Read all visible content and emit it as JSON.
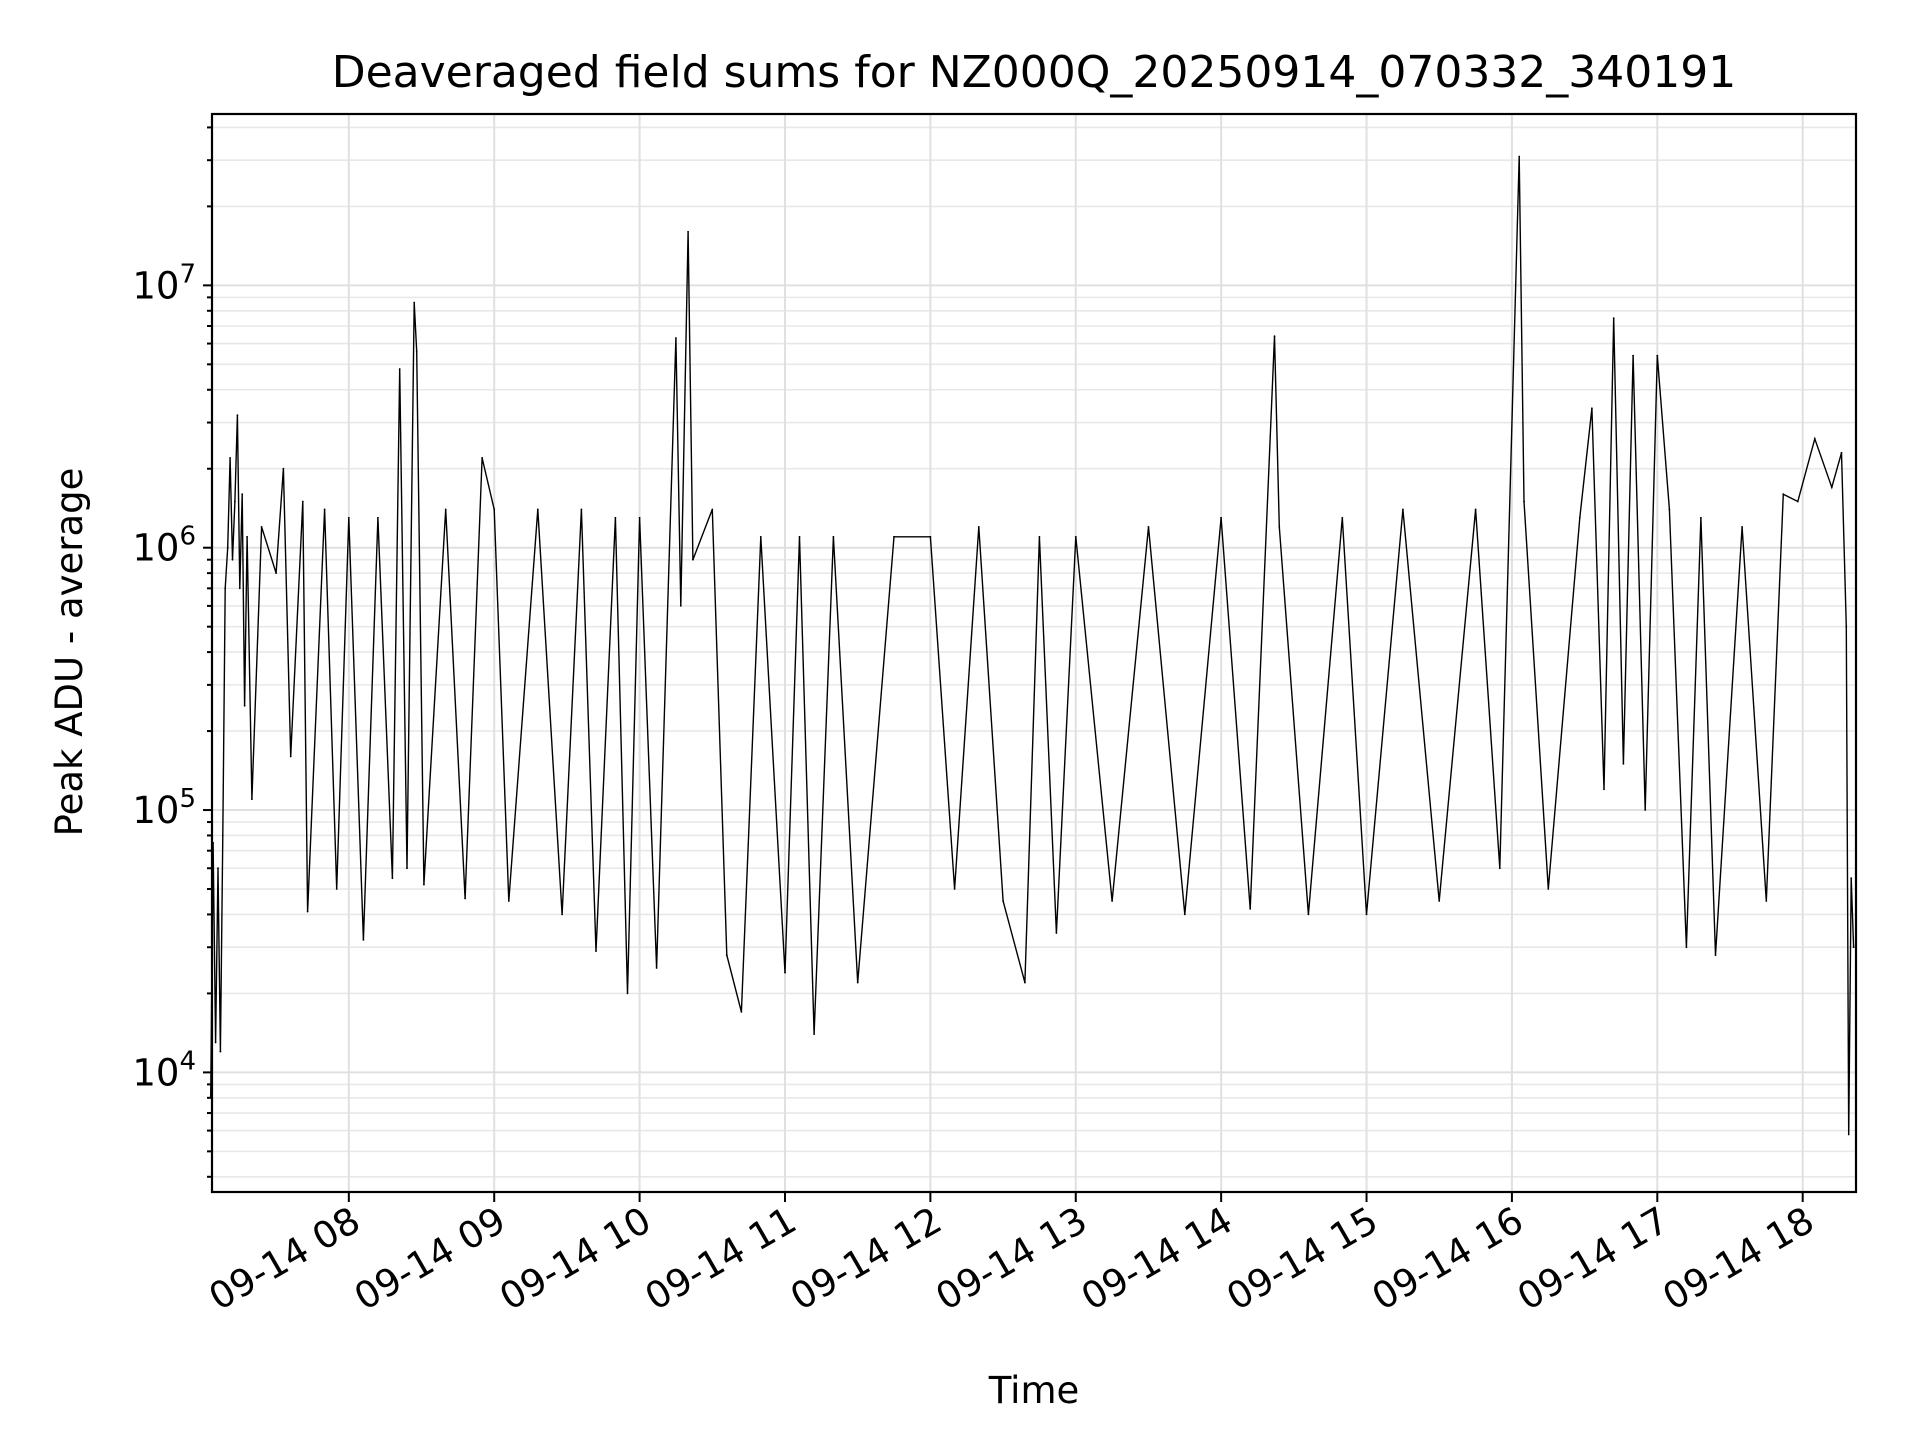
{
  "chart_data": {
    "type": "line",
    "title": "Deaveraged field sums for NZ000Q_20250914_070332_340191",
    "xlabel": "Time",
    "ylabel": "Peak ADU - average",
    "yscale": "log",
    "ylim": [
      3500,
      45000000
    ],
    "xlim": [
      "2025-09-14 07:03:32",
      "2025-09-14 18:22:00"
    ],
    "grid": "on (major and minor)",
    "x_ticks": [
      {
        "label": "09-14 08",
        "t": "2025-09-14 08:00"
      },
      {
        "label": "09-14 09",
        "t": "2025-09-14 09:00"
      },
      {
        "label": "09-14 10",
        "t": "2025-09-14 10:00"
      },
      {
        "label": "09-14 11",
        "t": "2025-09-14 11:00"
      },
      {
        "label": "09-14 12",
        "t": "2025-09-14 12:00"
      },
      {
        "label": "09-14 13",
        "t": "2025-09-14 13:00"
      },
      {
        "label": "09-14 14",
        "t": "2025-09-14 14:00"
      },
      {
        "label": "09-14 15",
        "t": "2025-09-14 15:00"
      },
      {
        "label": "09-14 16",
        "t": "2025-09-14 16:00"
      },
      {
        "label": "09-14 17",
        "t": "2025-09-14 17:00"
      },
      {
        "label": "09-14 18",
        "t": "2025-09-14 18:00"
      }
    ],
    "y_ticks": [
      {
        "base": "10",
        "exp": "4",
        "value": 10000
      },
      {
        "base": "10",
        "exp": "5",
        "value": 100000
      },
      {
        "base": "10",
        "exp": "6",
        "value": 1000000
      },
      {
        "base": "10",
        "exp": "7",
        "value": 10000000
      }
    ],
    "series": [
      {
        "color": "#000000",
        "points": [
          [
            "2025-09-14 07:03",
            8000
          ],
          [
            "2025-09-14 07:04",
            75000
          ],
          [
            "2025-09-14 07:05",
            13000
          ],
          [
            "2025-09-14 07:06",
            60000
          ],
          [
            "2025-09-14 07:07",
            12000
          ],
          [
            "2025-09-14 07:08",
            80000
          ],
          [
            "2025-09-14 07:09",
            700000
          ],
          [
            "2025-09-14 07:10",
            1000000
          ],
          [
            "2025-09-14 07:11",
            2200000
          ],
          [
            "2025-09-14 07:12",
            900000
          ],
          [
            "2025-09-14 07:13",
            1500000
          ],
          [
            "2025-09-14 07:14",
            3200000
          ],
          [
            "2025-09-14 07:15",
            700000
          ],
          [
            "2025-09-14 07:16",
            1600000
          ],
          [
            "2025-09-14 07:17",
            250000
          ],
          [
            "2025-09-14 07:18",
            1100000
          ],
          [
            "2025-09-14 07:20",
            110000
          ],
          [
            "2025-09-14 07:24",
            1200000
          ],
          [
            "2025-09-14 07:30",
            800000
          ],
          [
            "2025-09-14 07:33",
            2000000
          ],
          [
            "2025-09-14 07:36",
            160000
          ],
          [
            "2025-09-14 07:41",
            1500000
          ],
          [
            "2025-09-14 07:43",
            41000
          ],
          [
            "2025-09-14 07:50",
            1400000
          ],
          [
            "2025-09-14 07:55",
            50000
          ],
          [
            "2025-09-14 08:00",
            1300000
          ],
          [
            "2025-09-14 08:06",
            32000
          ],
          [
            "2025-09-14 08:12",
            1300000
          ],
          [
            "2025-09-14 08:18",
            55000
          ],
          [
            "2025-09-14 08:21",
            4800000
          ],
          [
            "2025-09-14 08:24",
            60000
          ],
          [
            "2025-09-14 08:27",
            8600000
          ],
          [
            "2025-09-14 08:28",
            5600000
          ],
          [
            "2025-09-14 08:31",
            52000
          ],
          [
            "2025-09-14 08:40",
            1400000
          ],
          [
            "2025-09-14 08:48",
            46000
          ],
          [
            "2025-09-14 08:55",
            2200000
          ],
          [
            "2025-09-14 09:00",
            1400000
          ],
          [
            "2025-09-14 09:06",
            45000
          ],
          [
            "2025-09-14 09:18",
            1400000
          ],
          [
            "2025-09-14 09:28",
            40000
          ],
          [
            "2025-09-14 09:36",
            1400000
          ],
          [
            "2025-09-14 09:42",
            29000
          ],
          [
            "2025-09-14 09:50",
            1300000
          ],
          [
            "2025-09-14 09:55",
            20000
          ],
          [
            "2025-09-14 10:00",
            1300000
          ],
          [
            "2025-09-14 10:07",
            25000
          ],
          [
            "2025-09-14 10:15",
            6300000
          ],
          [
            "2025-09-14 10:17",
            600000
          ],
          [
            "2025-09-14 10:20",
            16000000
          ],
          [
            "2025-09-14 10:22",
            900000
          ],
          [
            "2025-09-14 10:30",
            1400000
          ],
          [
            "2025-09-14 10:36",
            28000
          ],
          [
            "2025-09-14 10:42",
            17000
          ],
          [
            "2025-09-14 10:50",
            1100000
          ],
          [
            "2025-09-14 11:00",
            24000
          ],
          [
            "2025-09-14 11:06",
            1100000
          ],
          [
            "2025-09-14 11:12",
            14000
          ],
          [
            "2025-09-14 11:20",
            1100000
          ],
          [
            "2025-09-14 11:30",
            22000
          ],
          [
            "2025-09-14 11:45",
            1100000
          ],
          [
            "2025-09-14 12:00",
            1100000
          ],
          [
            "2025-09-14 12:10",
            50000
          ],
          [
            "2025-09-14 12:20",
            1200000
          ],
          [
            "2025-09-14 12:30",
            45000
          ],
          [
            "2025-09-14 12:39",
            22000
          ],
          [
            "2025-09-14 12:45",
            1100000
          ],
          [
            "2025-09-14 12:52",
            34000
          ],
          [
            "2025-09-14 13:00",
            1100000
          ],
          [
            "2025-09-14 13:15",
            45000
          ],
          [
            "2025-09-14 13:30",
            1200000
          ],
          [
            "2025-09-14 13:45",
            40000
          ],
          [
            "2025-09-14 14:00",
            1300000
          ],
          [
            "2025-09-14 14:12",
            42000
          ],
          [
            "2025-09-14 14:22",
            6400000
          ],
          [
            "2025-09-14 14:24",
            1200000
          ],
          [
            "2025-09-14 14:36",
            40000
          ],
          [
            "2025-09-14 14:50",
            1300000
          ],
          [
            "2025-09-14 15:00",
            40000
          ],
          [
            "2025-09-14 15:15",
            1400000
          ],
          [
            "2025-09-14 15:30",
            45000
          ],
          [
            "2025-09-14 15:45",
            1400000
          ],
          [
            "2025-09-14 15:55",
            60000
          ],
          [
            "2025-09-14 16:03",
            31000000
          ],
          [
            "2025-09-14 16:05",
            1500000
          ],
          [
            "2025-09-14 16:15",
            50000
          ],
          [
            "2025-09-14 16:28",
            1300000
          ],
          [
            "2025-09-14 16:33",
            3400000
          ],
          [
            "2025-09-14 16:38",
            120000
          ],
          [
            "2025-09-14 16:42",
            7500000
          ],
          [
            "2025-09-14 16:46",
            150000
          ],
          [
            "2025-09-14 16:50",
            5400000
          ],
          [
            "2025-09-14 16:55",
            100000
          ],
          [
            "2025-09-14 17:00",
            5400000
          ],
          [
            "2025-09-14 17:05",
            1400000
          ],
          [
            "2025-09-14 17:12",
            30000
          ],
          [
            "2025-09-14 17:18",
            1300000
          ],
          [
            "2025-09-14 17:24",
            28000
          ],
          [
            "2025-09-14 17:35",
            1200000
          ],
          [
            "2025-09-14 17:45",
            45000
          ],
          [
            "2025-09-14 17:52",
            1600000
          ],
          [
            "2025-09-14 17:58",
            1500000
          ],
          [
            "2025-09-14 18:05",
            2600000
          ],
          [
            "2025-09-14 18:12",
            1700000
          ],
          [
            "2025-09-14 18:16",
            2300000
          ],
          [
            "2025-09-14 18:18",
            500000
          ],
          [
            "2025-09-14 18:19",
            5800
          ],
          [
            "2025-09-14 18:20",
            55000
          ],
          [
            "2025-09-14 18:21",
            30000
          ]
        ]
      }
    ]
  }
}
